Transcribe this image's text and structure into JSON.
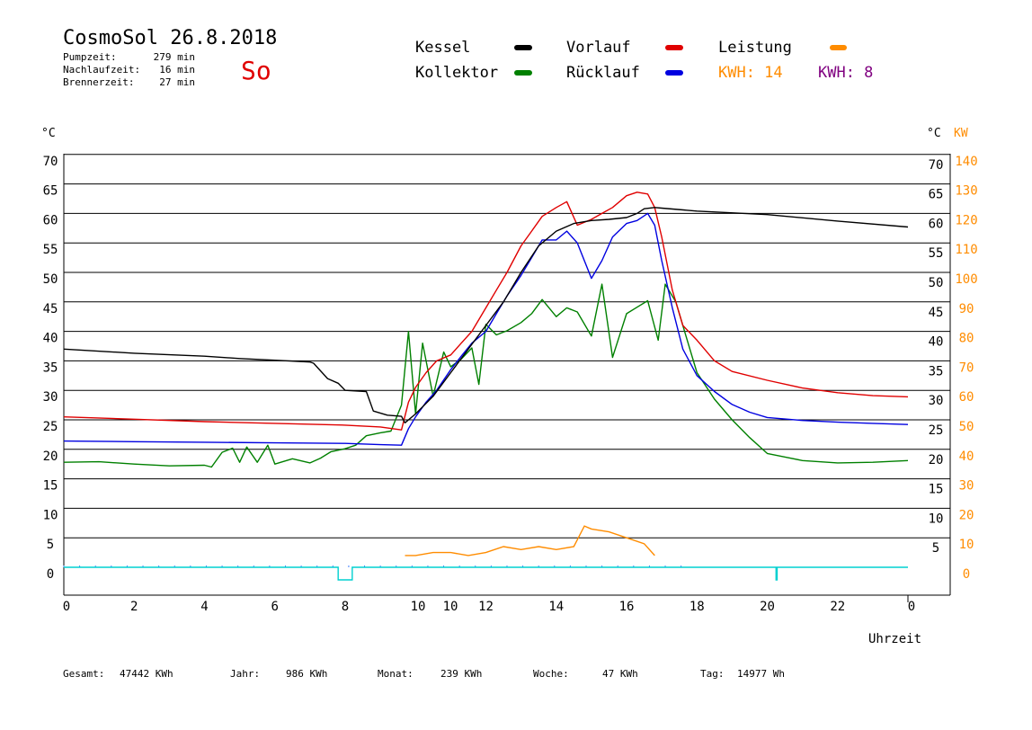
{
  "header": {
    "title": "CosmoSol 26.8.2018",
    "day": "So",
    "stats": [
      {
        "label": "Pumpzeit:",
        "value": "279 min"
      },
      {
        "label": "Nachlaufzeit:",
        "value": "16 min"
      },
      {
        "label": "Brennerzeit:",
        "value": "27 min"
      }
    ]
  },
  "legend": {
    "kessel": "Kessel",
    "kollektor": "Kollektor",
    "vorlauf": "Vorlauf",
    "ruecklauf": "Rücklauf",
    "leistung": "Leistung",
    "kwh1": "KWH: 14",
    "kwh2": "KWH: 8"
  },
  "colors": {
    "kessel": "#000000",
    "kollektor": "#008000",
    "vorlauf": "#e00000",
    "ruecklauf": "#0000e0",
    "leistung": "#ff8c00",
    "kwh2": "#800080",
    "pump": "#00d0d0"
  },
  "footer": [
    {
      "label": "Gesamt:",
      "value": "47442 KWh"
    },
    {
      "label": "Jahr:",
      "value": "986 KWh"
    },
    {
      "label": "Monat:",
      "value": "239 KWh"
    },
    {
      "label": "Woche:",
      "value": "47 KWh"
    },
    {
      "label": "Tag:",
      "value": "14977 Wh"
    }
  ],
  "chart_data": {
    "type": "line",
    "xlabel": "Uhrzeit",
    "ylabel_left": "°C",
    "ylabel_right": "°C",
    "ylabel_right2": "KW",
    "xlim": [
      0,
      24
    ],
    "ylim": [
      0,
      70
    ],
    "ylim_right2": [
      0,
      140
    ],
    "x_ticks": [
      "0",
      "2",
      "4",
      "6",
      "8",
      "10",
      "10",
      "12",
      "14",
      "16",
      "18",
      "20",
      "22",
      "0"
    ],
    "y_ticks_left": [
      "0",
      "5",
      "10",
      "15",
      "20",
      "25",
      "30",
      "35",
      "40",
      "45",
      "50",
      "55",
      "60",
      "65",
      "70"
    ],
    "y_ticks_right": [
      "5",
      "10",
      "15",
      "20",
      "25",
      "30",
      "35",
      "40",
      "45",
      "50",
      "55",
      "60",
      "65",
      "70"
    ],
    "y_ticks_right2": [
      "0",
      "10",
      "20",
      "30",
      "40",
      "50",
      "60",
      "70",
      "80",
      "90",
      "100",
      "110",
      "120",
      "130",
      "140"
    ],
    "grid": true,
    "series": [
      {
        "name": "Kessel",
        "x": [
          0,
          2,
          4,
          5,
          6,
          7,
          7.1,
          7.5,
          7.8,
          8.0,
          8.6,
          8.8,
          9.2,
          9.6,
          9.7,
          10.0,
          10.5,
          11.0,
          11.5,
          12.0,
          12.5,
          13.0,
          13.5,
          14.0,
          14.5,
          15.0,
          15.5,
          16.0,
          16.3,
          16.5,
          16.8,
          17.0,
          18.0,
          20.0,
          22.0,
          24.0
        ],
        "y": [
          37,
          36.3,
          35.8,
          35.4,
          35.1,
          34.8,
          34.6,
          32,
          31.2,
          30,
          29.8,
          26.5,
          25.8,
          25.6,
          24.5,
          26,
          29,
          33,
          37,
          41,
          45,
          50,
          54.5,
          57,
          58.3,
          58.8,
          59,
          59.3,
          60,
          60.8,
          61,
          60.9,
          60.4,
          59.8,
          58.7,
          57.7
        ]
      },
      {
        "name": "Kollektor",
        "x": [
          0,
          1,
          2,
          3,
          4,
          4.2,
          4.5,
          4.8,
          5.0,
          5.2,
          5.5,
          5.8,
          6.0,
          6.5,
          7.0,
          7.3,
          7.6,
          8.0,
          8.3,
          8.6,
          9.0,
          9.3,
          9.6,
          9.8,
          10.0,
          10.2,
          10.5,
          10.8,
          11.0,
          11.3,
          11.6,
          11.8,
          12.0,
          12.3,
          12.6,
          13.0,
          13.3,
          13.6,
          14.0,
          14.3,
          14.6,
          15.0,
          15.3,
          15.6,
          16.0,
          16.3,
          16.6,
          16.9,
          17.1,
          17.4,
          17.7,
          18.0,
          18.5,
          19.0,
          19.5,
          20.0,
          21.0,
          22.0,
          23.0,
          24.0
        ],
        "y": [
          17.8,
          17.9,
          17.5,
          17.2,
          17.3,
          17,
          19.5,
          20.2,
          17.8,
          20.4,
          17.8,
          20.7,
          17.5,
          18.4,
          17.7,
          18.5,
          19.6,
          20.1,
          20.7,
          22.3,
          22.8,
          23.1,
          27.5,
          40,
          26,
          38,
          29,
          36.5,
          34,
          35.3,
          37.2,
          31,
          41.2,
          39.4,
          40.1,
          41.5,
          43,
          45.4,
          42.5,
          44,
          43.3,
          39.2,
          48,
          35.6,
          43,
          44.1,
          45.2,
          38.5,
          48,
          45,
          39,
          33,
          28.5,
          25,
          22,
          19.3,
          18.1,
          17.7,
          17.8,
          18.1
        ]
      },
      {
        "name": "Vorlauf",
        "x": [
          0,
          2,
          4,
          6,
          8,
          9,
          9.6,
          9.8,
          10.0,
          10.3,
          10.6,
          11.0,
          11.3,
          11.6,
          12.0,
          12.3,
          12.6,
          13.0,
          13.3,
          13.6,
          14.0,
          14.3,
          14.6,
          15.0,
          15.3,
          15.6,
          16.0,
          16.3,
          16.6,
          16.8,
          17.0,
          17.3,
          17.6,
          18.0,
          18.5,
          19.0,
          20.0,
          21.0,
          22.0,
          23.0,
          24.0
        ],
        "y": [
          25.5,
          25.1,
          24.7,
          24.4,
          24.1,
          23.8,
          23.3,
          28,
          30.5,
          33,
          35,
          36,
          38,
          40,
          44,
          47,
          50,
          54.5,
          57,
          59.5,
          61,
          62,
          58,
          59,
          60,
          61,
          63,
          63.6,
          63.3,
          61,
          56,
          47,
          41,
          38.5,
          35,
          33.2,
          31.7,
          30.4,
          29.6,
          29.1,
          28.9
        ]
      },
      {
        "name": "Rücklauf",
        "x": [
          0,
          2,
          4,
          6,
          8,
          9,
          9.6,
          9.8,
          10.0,
          10.3,
          10.6,
          11.0,
          11.3,
          11.6,
          12.0,
          12.3,
          12.6,
          13.0,
          13.3,
          13.6,
          14.0,
          14.3,
          14.6,
          15.0,
          15.3,
          15.6,
          16.0,
          16.3,
          16.6,
          16.8,
          17.0,
          17.3,
          17.6,
          18.0,
          18.5,
          19.0,
          19.5,
          20.0,
          21.0,
          22.0,
          23.0,
          24.0
        ],
        "y": [
          21.4,
          21.3,
          21.2,
          21.1,
          21.0,
          20.8,
          20.7,
          23.5,
          25.5,
          28,
          30,
          33.5,
          35.8,
          38,
          40,
          43,
          46,
          49.5,
          52.5,
          55.5,
          55.5,
          57,
          55,
          49,
          52,
          56,
          58.3,
          58.8,
          60,
          58,
          52,
          44,
          37,
          32.5,
          29.8,
          27.6,
          26.3,
          25.4,
          24.9,
          24.6,
          24.4,
          24.2
        ]
      }
    ],
    "power_kw": {
      "name": "Leistung",
      "x": [
        9.7,
        10.0,
        10.5,
        11.0,
        11.5,
        12.0,
        12.5,
        13.0,
        13.5,
        14.0,
        14.5,
        14.8,
        15.0,
        15.5,
        16.0,
        16.5,
        16.8
      ],
      "y": [
        4,
        4,
        5,
        5,
        4,
        5,
        7,
        6,
        7,
        6,
        7,
        14,
        13,
        12,
        10,
        8,
        4
      ]
    },
    "pump_status": {
      "name": "Pumpe",
      "on_intervals": [
        [
          7.8,
          8.2
        ],
        [
          20.25,
          20.28
        ]
      ]
    }
  }
}
